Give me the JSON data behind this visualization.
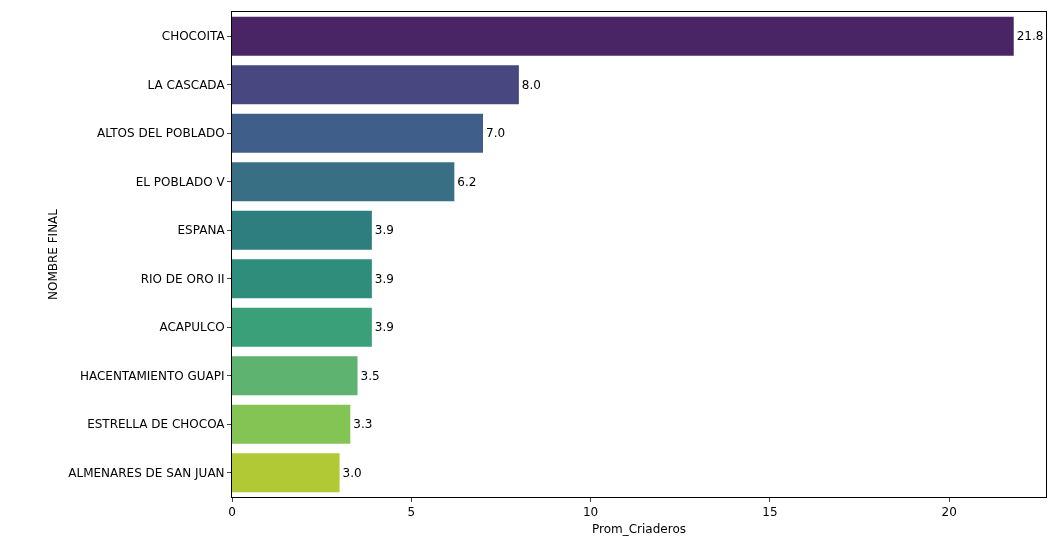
{
  "chart_data": {
    "type": "bar",
    "orientation": "horizontal",
    "xlabel": "Prom_Criaderos",
    "ylabel": "NOMBRE FINAL",
    "categories": [
      "CHOCOITA",
      "LA CASCADA",
      "ALTOS DEL POBLADO",
      "EL POBLADO V",
      "ESPANA",
      "RIO DE ORO II",
      "ACAPULCO",
      "HACENTAMIENTO GUAPI",
      "ESTRELLA DE CHOCOA",
      "ALMENARES DE SAN JUAN"
    ],
    "values": [
      21.8,
      8.0,
      7.0,
      6.2,
      3.9,
      3.9,
      3.9,
      3.5,
      3.3,
      3.0
    ],
    "colors": [
      "#4a2566",
      "#48477f",
      "#3f5f8a",
      "#386f84",
      "#2e7e80",
      "#2e8d7b",
      "#3aa07a",
      "#5db36f",
      "#84c455",
      "#b0c935"
    ],
    "value_labels": [
      "21.8",
      "8.0",
      "7.0",
      "6.2",
      "3.9",
      "3.9",
      "3.9",
      "3.5",
      "3.3",
      "3.0"
    ],
    "xlim": [
      0,
      22.7
    ],
    "xticks": [
      0,
      5,
      10,
      15,
      20
    ]
  }
}
